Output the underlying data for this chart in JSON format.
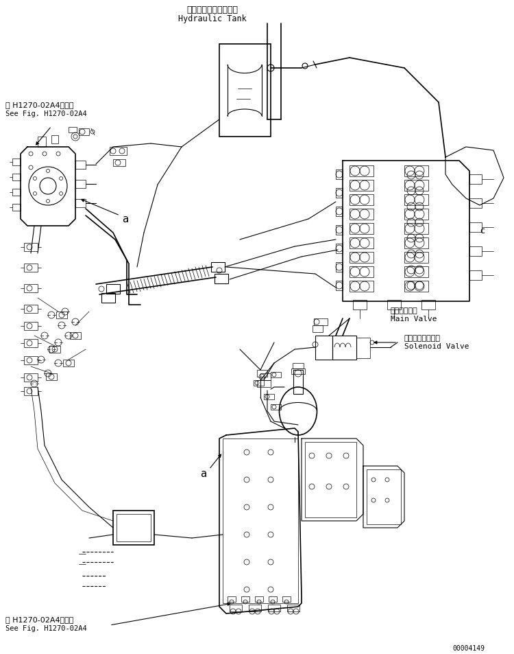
{
  "bg_color": "#ffffff",
  "figsize": [
    7.5,
    9.54
  ],
  "dpi": 100,
  "title_jp": "ハイドロリックタンク",
  "title_en": "Hydraulic Tank",
  "ref_jp_top": "第 H1270-02A4図参照",
  "ref_en_top": "See Fig. H1270-02A4",
  "ref_jp_bot": "第 H1270-02A4図参照",
  "ref_en_bot": "See Fig. H1270-02A4",
  "main_valve_jp": "メインバルブ",
  "main_valve_en": "Main Valve",
  "solenoid_jp": "ソレノイドバルブ",
  "solenoid_en": "Solenoid Valve",
  "part_number": "00004149",
  "label_a": "a",
  "label_c": "c"
}
